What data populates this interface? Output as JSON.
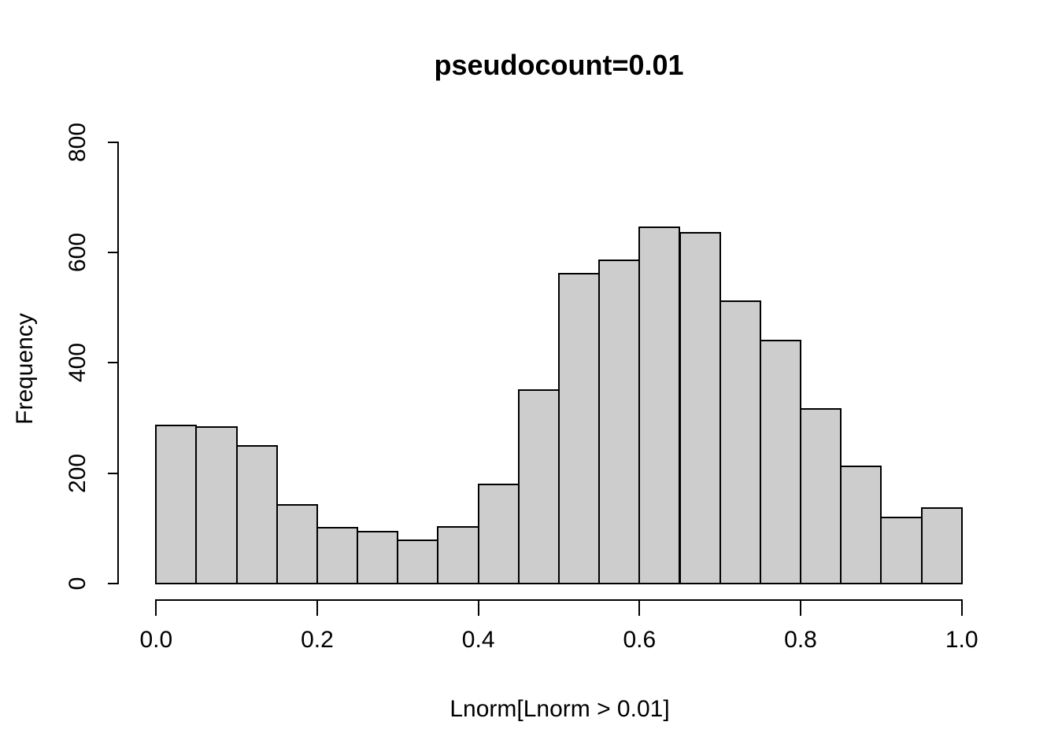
{
  "page": {
    "background": "#ffffff"
  },
  "chart_data": {
    "type": "bar",
    "subtype": "histogram",
    "title": "pseudocount=0.01",
    "xlabel": "Lnorm[Lnorm > 0.01]",
    "ylabel": "Frequency",
    "bin_edges": [
      0.0,
      0.05,
      0.1,
      0.15,
      0.2,
      0.25,
      0.3,
      0.35,
      0.4,
      0.45,
      0.5,
      0.55,
      0.6,
      0.65,
      0.7,
      0.75,
      0.8,
      0.85,
      0.9,
      0.95,
      1.0
    ],
    "values": [
      286,
      284,
      249,
      143,
      101,
      94,
      78,
      103,
      179,
      350,
      562,
      586,
      646,
      635,
      511,
      441,
      317,
      212,
      119,
      137
    ],
    "x_tick_values": [
      0.0,
      0.2,
      0.4,
      0.6,
      0.8,
      1.0
    ],
    "x_tick_labels": [
      "0.0",
      "0.2",
      "0.4",
      "0.6",
      "0.8",
      "1.0"
    ],
    "y_tick_values": [
      0,
      200,
      400,
      600,
      800
    ],
    "y_tick_labels": [
      "0",
      "200",
      "400",
      "600",
      "800"
    ],
    "xlim": [
      0.0,
      1.0
    ],
    "ylim": [
      0,
      800
    ],
    "grid": false,
    "legend": null,
    "bar_fill": "#cdcdcd",
    "bar_stroke": "#000000",
    "axis_color": "#000000",
    "text_color": "#000000"
  }
}
